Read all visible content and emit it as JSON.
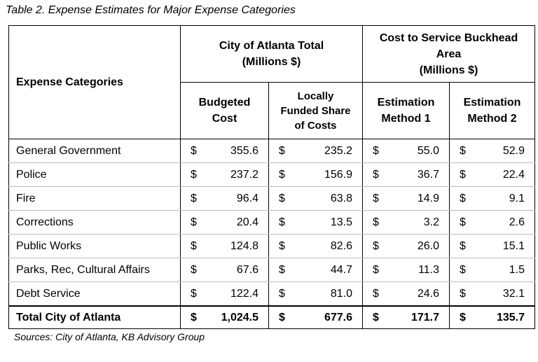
{
  "caption": "Table 2. Expense Estimates for Major Expense Categories",
  "headers": {
    "expense_categories": "Expense Categories",
    "city_total_line1": "City of Atlanta Total",
    "city_total_line2": "(Millions $)",
    "buckhead_line1": "Cost to Service Buckhead",
    "buckhead_line2": "Area",
    "buckhead_line3": "(Millions $)",
    "budgeted_line1": "Budgeted",
    "budgeted_line2": "Cost",
    "local_line1": "Locally",
    "local_line2": "Funded Share",
    "local_line3": "of Costs",
    "m1_line1": "Estimation",
    "m1_line2": "Method 1",
    "m2_line1": "Estimation",
    "m2_line2": "Method 2"
  },
  "rows": [
    {
      "name": "General Government",
      "budgeted": "355.6",
      "local": "235.2",
      "m1": "55.0",
      "m2": "52.9"
    },
    {
      "name": "Police",
      "budgeted": "237.2",
      "local": "156.9",
      "m1": "36.7",
      "m2": "22.4"
    },
    {
      "name": "Fire",
      "budgeted": "96.4",
      "local": "63.8",
      "m1": "14.9",
      "m2": "9.1"
    },
    {
      "name": "Corrections",
      "budgeted": "20.4",
      "local": "13.5",
      "m1": "3.2",
      "m2": "2.6"
    },
    {
      "name": "Public Works",
      "budgeted": "124.8",
      "local": "82.6",
      "m1": "26.0",
      "m2": "15.1"
    },
    {
      "name": "Parks, Rec, Cultural Affairs",
      "budgeted": "67.6",
      "local": "44.7",
      "m1": "11.3",
      "m2": "1.5"
    },
    {
      "name": "Debt Service",
      "budgeted": "122.4",
      "local": "81.0",
      "m1": "24.6",
      "m2": "32.1"
    }
  ],
  "total": {
    "name": "Total City of Atlanta",
    "budgeted": "1,024.5",
    "local": "677.6",
    "m1": "171.7",
    "m2": "135.7"
  },
  "currency": "$",
  "source": "Sources: City of Atlanta, KB Advisory Group"
}
